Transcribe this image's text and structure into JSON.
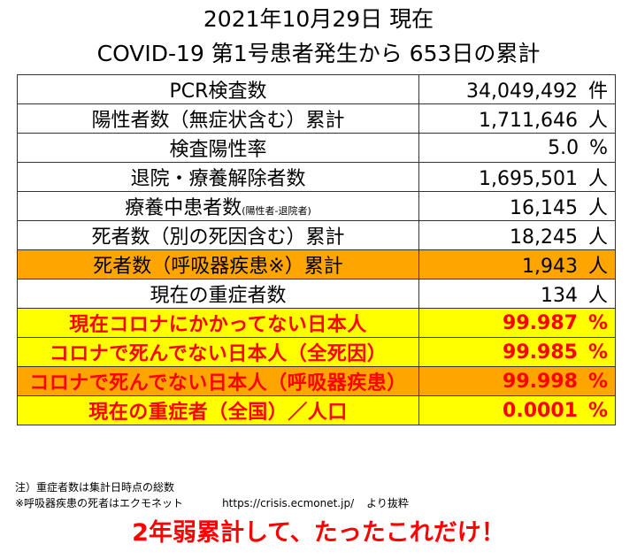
{
  "header": {
    "line1": "2021年10月29日  現在",
    "line2": "COVID-19 第1号患者発生から  653日の累計"
  },
  "rows": [
    {
      "label": "PCR検査数",
      "value": "34,049,492",
      "unit": "件"
    },
    {
      "label": "陽性者数（無症状含む）累計",
      "value": "1,711,646",
      "unit": "人"
    },
    {
      "label": "検査陽性率",
      "value": "5.0",
      "unit": "%"
    },
    {
      "label": "退院・療養解除者数",
      "value": "1,695,501",
      "unit": "人"
    },
    {
      "label": "療養中患者数",
      "label_sub": "(陽性者-退院者)",
      "value": "16,145",
      "unit": "人"
    },
    {
      "label": "死者数（別の死因含む）累計",
      "value": "18,245",
      "unit": "人"
    },
    {
      "label": "死者数（呼吸器疾患※）累計",
      "value": "1,943",
      "unit": "人"
    },
    {
      "label": "現在の重症者数",
      "value": "134",
      "unit": "人"
    },
    {
      "label": "現在コロナにかかってない日本人",
      "value": "99.987",
      "unit": "%"
    },
    {
      "label": "コロナで死んでない日本人（全死因）",
      "value": "99.985",
      "unit": "%"
    },
    {
      "label": "コロナで死んでない日本人（呼吸器疾患）",
      "value": "99.998",
      "unit": "%"
    },
    {
      "label": "現在の重症者（全国）／人口",
      "value": "0.0001",
      "unit": "%"
    }
  ],
  "notes": {
    "note1": "注）重症者数は集計日時点の総数",
    "note2": "※呼吸器疾患の死者はエクモネット",
    "note2_url": "https://crisis.ecmonet.jp/",
    "note2_src": "より抜粋"
  },
  "footer": "2年弱累計して、たったこれだけ！",
  "colors": {
    "highlight_orange": "#ffa500",
    "highlight_yellow": "#ffff00",
    "alert_red": "#ff0000"
  }
}
